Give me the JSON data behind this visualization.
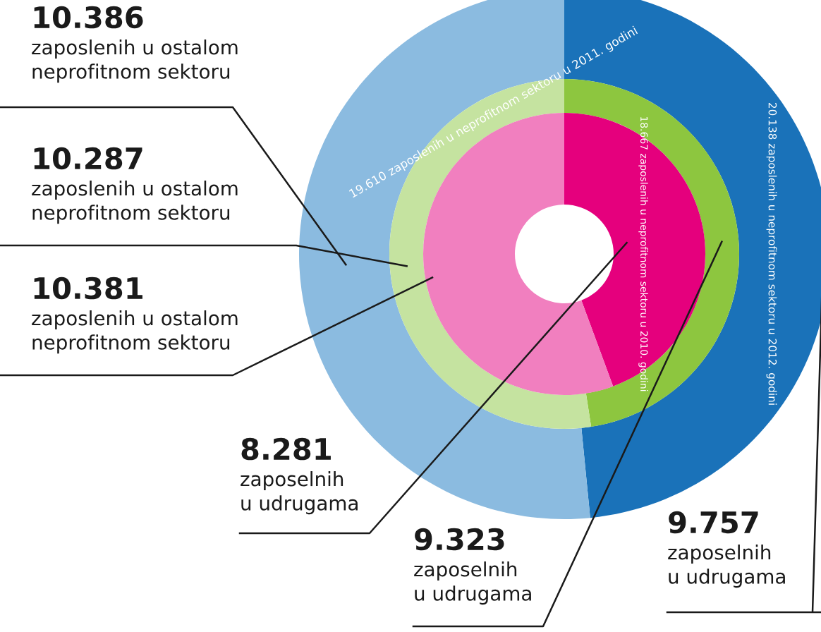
{
  "chart_data": {
    "type": "donut",
    "categories": [
      "zaposelnih u udrugama",
      "zaposlenih u ostalom neprofitnom sektoru"
    ],
    "series": [
      {
        "values": [
          9757,
          10386
        ],
        "value_labels": [
          "9.757",
          "10.386"
        ],
        "colors": [
          "#1a72b9",
          "#8bbbe0"
        ]
      },
      {
        "values": [
          9323,
          10287
        ],
        "value_labels": [
          "9.323",
          "10.287"
        ],
        "colors": [
          "#8dc63f",
          "#c5e3a0"
        ]
      },
      {
        "values": [
          8281,
          10381
        ],
        "value_labels": [
          "8.281",
          "10.381"
        ],
        "colors": [
          "#e5007d",
          "#f17fbf"
        ]
      }
    ],
    "annotations": [
      "20.138 zaposlenih u neprofitnom sektoru u 2012. godini",
      "19.610 zaposlenih u neprofitnom sektoru u 2011. godini",
      "18.667 zaposlenih u neprofitnom sektoru u 2010. godini"
    ]
  }
}
